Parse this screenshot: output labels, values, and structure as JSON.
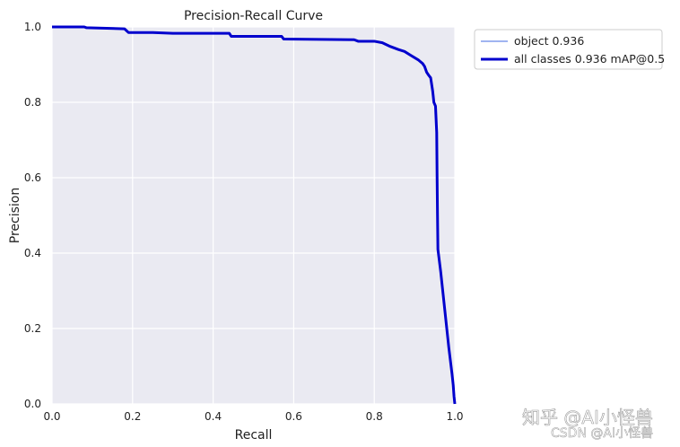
{
  "chart_data": {
    "type": "line",
    "title": "Precision-Recall Curve",
    "xlabel": "Recall",
    "ylabel": "Precision",
    "xlim": [
      0,
      1
    ],
    "ylim": [
      0,
      1
    ],
    "xticks": [
      "0.0",
      "0.2",
      "0.4",
      "0.6",
      "0.8",
      "1.0"
    ],
    "yticks": [
      "0.0",
      "0.2",
      "0.4",
      "0.6",
      "0.8",
      "1.0"
    ],
    "grid": true,
    "legend_position": "outside-top-right",
    "series": [
      {
        "name": "object 0.936",
        "color": "#4169e1",
        "style": "thin",
        "points": [
          [
            0.0,
            1.0
          ],
          [
            0.08,
            1.0
          ],
          [
            0.085,
            0.998
          ],
          [
            0.18,
            0.995
          ],
          [
            0.19,
            0.985
          ],
          [
            0.25,
            0.985
          ],
          [
            0.3,
            0.983
          ],
          [
            0.44,
            0.983
          ],
          [
            0.445,
            0.975
          ],
          [
            0.57,
            0.975
          ],
          [
            0.575,
            0.968
          ],
          [
            0.75,
            0.966
          ],
          [
            0.76,
            0.962
          ],
          [
            0.8,
            0.962
          ],
          [
            0.82,
            0.958
          ],
          [
            0.84,
            0.948
          ],
          [
            0.86,
            0.94
          ],
          [
            0.875,
            0.935
          ],
          [
            0.89,
            0.925
          ],
          [
            0.91,
            0.912
          ],
          [
            0.92,
            0.903
          ],
          [
            0.925,
            0.895
          ],
          [
            0.93,
            0.88
          ],
          [
            0.935,
            0.872
          ],
          [
            0.94,
            0.865
          ],
          [
            0.945,
            0.83
          ],
          [
            0.948,
            0.8
          ],
          [
            0.952,
            0.79
          ],
          [
            0.955,
            0.72
          ],
          [
            0.956,
            0.6
          ],
          [
            0.957,
            0.5
          ],
          [
            0.958,
            0.41
          ],
          [
            0.965,
            0.35
          ],
          [
            0.975,
            0.25
          ],
          [
            0.985,
            0.15
          ],
          [
            0.993,
            0.08
          ],
          [
            0.996,
            0.05
          ],
          [
            0.998,
            0.02
          ],
          [
            1.0,
            0.0
          ]
        ]
      },
      {
        "name": "all classes 0.936 mAP@0.5",
        "color": "#0000cd",
        "style": "thick",
        "points": [
          [
            0.0,
            1.0
          ],
          [
            0.08,
            1.0
          ],
          [
            0.085,
            0.998
          ],
          [
            0.18,
            0.995
          ],
          [
            0.19,
            0.985
          ],
          [
            0.25,
            0.985
          ],
          [
            0.3,
            0.983
          ],
          [
            0.44,
            0.983
          ],
          [
            0.445,
            0.975
          ],
          [
            0.57,
            0.975
          ],
          [
            0.575,
            0.968
          ],
          [
            0.75,
            0.966
          ],
          [
            0.76,
            0.962
          ],
          [
            0.8,
            0.962
          ],
          [
            0.82,
            0.958
          ],
          [
            0.84,
            0.948
          ],
          [
            0.86,
            0.94
          ],
          [
            0.875,
            0.935
          ],
          [
            0.89,
            0.925
          ],
          [
            0.91,
            0.912
          ],
          [
            0.92,
            0.903
          ],
          [
            0.925,
            0.895
          ],
          [
            0.93,
            0.88
          ],
          [
            0.935,
            0.872
          ],
          [
            0.94,
            0.865
          ],
          [
            0.945,
            0.83
          ],
          [
            0.948,
            0.8
          ],
          [
            0.952,
            0.79
          ],
          [
            0.955,
            0.72
          ],
          [
            0.956,
            0.6
          ],
          [
            0.957,
            0.5
          ],
          [
            0.958,
            0.41
          ],
          [
            0.965,
            0.35
          ],
          [
            0.975,
            0.25
          ],
          [
            0.985,
            0.15
          ],
          [
            0.993,
            0.08
          ],
          [
            0.996,
            0.05
          ],
          [
            0.998,
            0.02
          ],
          [
            1.0,
            0.0
          ]
        ]
      }
    ]
  },
  "colors": {
    "plot_background": "#eaeaf2",
    "grid": "#ffffff"
  },
  "watermark": {
    "line1": "知乎 @AI小怪兽",
    "line2": "CSDN @AI小怪兽"
  }
}
